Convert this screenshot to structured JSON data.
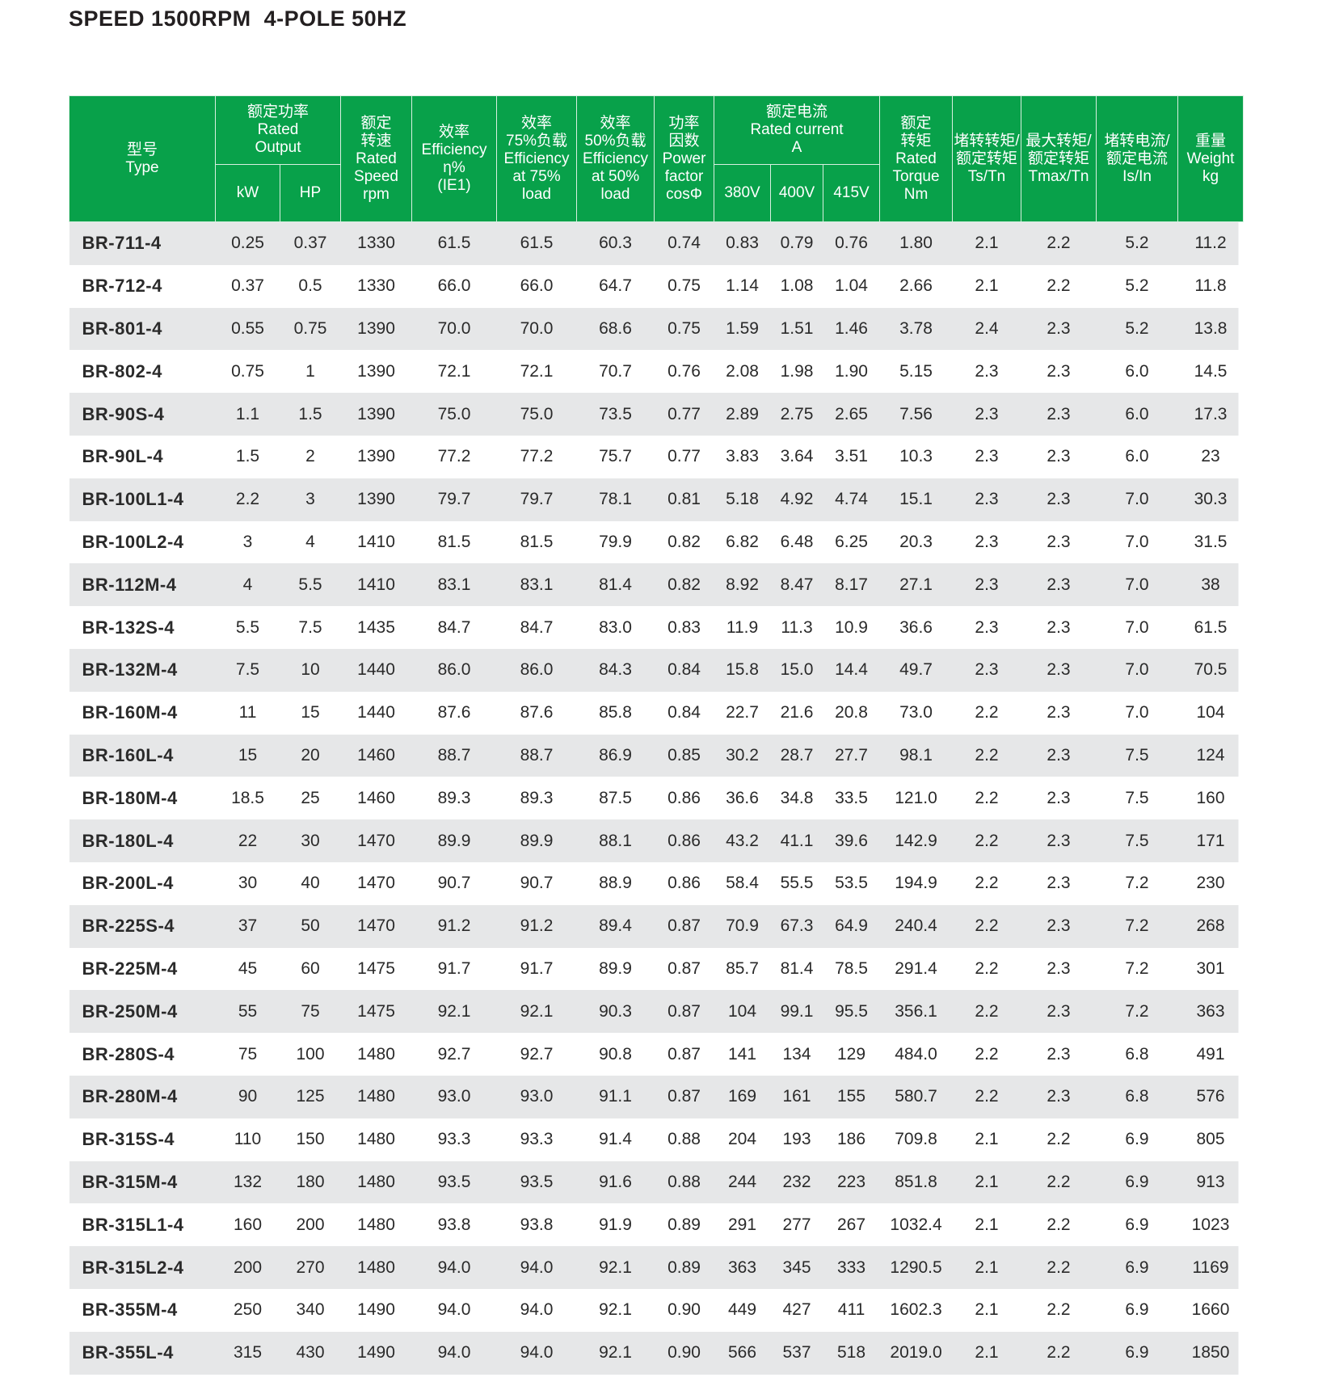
{
  "title": "SPEED 1500RPM  4-POLE 50HZ",
  "header": {
    "type": [
      "型号",
      "Type"
    ],
    "rated_output": [
      "额定功率",
      "Rated",
      "Output"
    ],
    "kw": "kW",
    "hp": "HP",
    "speed": [
      "额定",
      "转速",
      "Rated",
      "Speed",
      "rpm"
    ],
    "efficiency": [
      "效率",
      "Efficiency",
      "η%",
      "(IE1)"
    ],
    "eff75": [
      "效率",
      "75%负载",
      "Efficiency",
      "at 75%",
      "load"
    ],
    "eff50": [
      "效率",
      "50%负载",
      "Efficiency",
      "at 50%",
      "load"
    ],
    "pf": [
      "功率",
      "因数",
      "Power",
      "factor",
      "cosΦ"
    ],
    "current": [
      "额定电流",
      "Rated  current",
      "A"
    ],
    "v380": "380V",
    "v400": "400V",
    "v415": "415V",
    "torque": [
      "额定",
      "转矩",
      "Rated",
      "Torque",
      "Nm"
    ],
    "tsn": [
      "堵转转矩/",
      "额定转矩",
      "Ts/Tn"
    ],
    "tmax": [
      "最大转矩/",
      "额定转矩",
      "Tmax/Tn"
    ],
    "isn": [
      "堵转电流/",
      "额定电流",
      "Is/In"
    ],
    "weight": [
      "重量",
      "Weight",
      "kg"
    ]
  },
  "rows": [
    [
      "BR-711-4",
      "0.25",
      "0.37",
      "1330",
      "61.5",
      "61.5",
      "60.3",
      "0.74",
      "0.83",
      "0.79",
      "0.76",
      "1.80",
      "2.1",
      "2.2",
      "5.2",
      "11.2"
    ],
    [
      "BR-712-4",
      "0.37",
      "0.5",
      "1330",
      "66.0",
      "66.0",
      "64.7",
      "0.75",
      "1.14",
      "1.08",
      "1.04",
      "2.66",
      "2.1",
      "2.2",
      "5.2",
      "11.8"
    ],
    [
      "BR-801-4",
      "0.55",
      "0.75",
      "1390",
      "70.0",
      "70.0",
      "68.6",
      "0.75",
      "1.59",
      "1.51",
      "1.46",
      "3.78",
      "2.4",
      "2.3",
      "5.2",
      "13.8"
    ],
    [
      "BR-802-4",
      "0.75",
      "1",
      "1390",
      "72.1",
      "72.1",
      "70.7",
      "0.76",
      "2.08",
      "1.98",
      "1.90",
      "5.15",
      "2.3",
      "2.3",
      "6.0",
      "14.5"
    ],
    [
      "BR-90S-4",
      "1.1",
      "1.5",
      "1390",
      "75.0",
      "75.0",
      "73.5",
      "0.77",
      "2.89",
      "2.75",
      "2.65",
      "7.56",
      "2.3",
      "2.3",
      "6.0",
      "17.3"
    ],
    [
      "BR-90L-4",
      "1.5",
      "2",
      "1390",
      "77.2",
      "77.2",
      "75.7",
      "0.77",
      "3.83",
      "3.64",
      "3.51",
      "10.3",
      "2.3",
      "2.3",
      "6.0",
      "23"
    ],
    [
      "BR-100L1-4",
      "2.2",
      "3",
      "1390",
      "79.7",
      "79.7",
      "78.1",
      "0.81",
      "5.18",
      "4.92",
      "4.74",
      "15.1",
      "2.3",
      "2.3",
      "7.0",
      "30.3"
    ],
    [
      "BR-100L2-4",
      "3",
      "4",
      "1410",
      "81.5",
      "81.5",
      "79.9",
      "0.82",
      "6.82",
      "6.48",
      "6.25",
      "20.3",
      "2.3",
      "2.3",
      "7.0",
      "31.5"
    ],
    [
      "BR-112M-4",
      "4",
      "5.5",
      "1410",
      "83.1",
      "83.1",
      "81.4",
      "0.82",
      "8.92",
      "8.47",
      "8.17",
      "27.1",
      "2.3",
      "2.3",
      "7.0",
      "38"
    ],
    [
      "BR-132S-4",
      "5.5",
      "7.5",
      "1435",
      "84.7",
      "84.7",
      "83.0",
      "0.83",
      "11.9",
      "11.3",
      "10.9",
      "36.6",
      "2.3",
      "2.3",
      "7.0",
      "61.5"
    ],
    [
      "BR-132M-4",
      "7.5",
      "10",
      "1440",
      "86.0",
      "86.0",
      "84.3",
      "0.84",
      "15.8",
      "15.0",
      "14.4",
      "49.7",
      "2.3",
      "2.3",
      "7.0",
      "70.5"
    ],
    [
      "BR-160M-4",
      "11",
      "15",
      "1440",
      "87.6",
      "87.6",
      "85.8",
      "0.84",
      "22.7",
      "21.6",
      "20.8",
      "73.0",
      "2.2",
      "2.3",
      "7.0",
      "104"
    ],
    [
      "BR-160L-4",
      "15",
      "20",
      "1460",
      "88.7",
      "88.7",
      "86.9",
      "0.85",
      "30.2",
      "28.7",
      "27.7",
      "98.1",
      "2.2",
      "2.3",
      "7.5",
      "124"
    ],
    [
      "BR-180M-4",
      "18.5",
      "25",
      "1460",
      "89.3",
      "89.3",
      "87.5",
      "0.86",
      "36.6",
      "34.8",
      "33.5",
      "121.0",
      "2.2",
      "2.3",
      "7.5",
      "160"
    ],
    [
      "BR-180L-4",
      "22",
      "30",
      "1470",
      "89.9",
      "89.9",
      "88.1",
      "0.86",
      "43.2",
      "41.1",
      "39.6",
      "142.9",
      "2.2",
      "2.3",
      "7.5",
      "171"
    ],
    [
      "BR-200L-4",
      "30",
      "40",
      "1470",
      "90.7",
      "90.7",
      "88.9",
      "0.86",
      "58.4",
      "55.5",
      "53.5",
      "194.9",
      "2.2",
      "2.3",
      "7.2",
      "230"
    ],
    [
      "BR-225S-4",
      "37",
      "50",
      "1470",
      "91.2",
      "91.2",
      "89.4",
      "0.87",
      "70.9",
      "67.3",
      "64.9",
      "240.4",
      "2.2",
      "2.3",
      "7.2",
      "268"
    ],
    [
      "BR-225M-4",
      "45",
      "60",
      "1475",
      "91.7",
      "91.7",
      "89.9",
      "0.87",
      "85.7",
      "81.4",
      "78.5",
      "291.4",
      "2.2",
      "2.3",
      "7.2",
      "301"
    ],
    [
      "BR-250M-4",
      "55",
      "75",
      "1475",
      "92.1",
      "92.1",
      "90.3",
      "0.87",
      "104",
      "99.1",
      "95.5",
      "356.1",
      "2.2",
      "2.3",
      "7.2",
      "363"
    ],
    [
      "BR-280S-4",
      "75",
      "100",
      "1480",
      "92.7",
      "92.7",
      "90.8",
      "0.87",
      "141",
      "134",
      "129",
      "484.0",
      "2.2",
      "2.3",
      "6.8",
      "491"
    ],
    [
      "BR-280M-4",
      "90",
      "125",
      "1480",
      "93.0",
      "93.0",
      "91.1",
      "0.87",
      "169",
      "161",
      "155",
      "580.7",
      "2.2",
      "2.3",
      "6.8",
      "576"
    ],
    [
      "BR-315S-4",
      "110",
      "150",
      "1480",
      "93.3",
      "93.3",
      "91.4",
      "0.88",
      "204",
      "193",
      "186",
      "709.8",
      "2.1",
      "2.2",
      "6.9",
      "805"
    ],
    [
      "BR-315M-4",
      "132",
      "180",
      "1480",
      "93.5",
      "93.5",
      "91.6",
      "0.88",
      "244",
      "232",
      "223",
      "851.8",
      "2.1",
      "2.2",
      "6.9",
      "913"
    ],
    [
      "BR-315L1-4",
      "160",
      "200",
      "1480",
      "93.8",
      "93.8",
      "91.9",
      "0.89",
      "291",
      "277",
      "267",
      "1032.4",
      "2.1",
      "2.2",
      "6.9",
      "1023"
    ],
    [
      "BR-315L2-4",
      "200",
      "270",
      "1480",
      "94.0",
      "94.0",
      "92.1",
      "0.89",
      "363",
      "345",
      "333",
      "1290.5",
      "2.1",
      "2.2",
      "6.9",
      "1169"
    ],
    [
      "BR-355M-4",
      "250",
      "340",
      "1490",
      "94.0",
      "94.0",
      "92.1",
      "0.90",
      "449",
      "427",
      "411",
      "1602.3",
      "2.1",
      "2.2",
      "6.9",
      "1660"
    ],
    [
      "BR-355L-4",
      "315",
      "430",
      "1490",
      "94.0",
      "94.0",
      "92.1",
      "0.90",
      "566",
      "537",
      "518",
      "2019.0",
      "2.1",
      "2.2",
      "6.9",
      "1850"
    ]
  ],
  "colors": {
    "header_green": "#08a14a",
    "row_gray": "#e6e7e8"
  }
}
